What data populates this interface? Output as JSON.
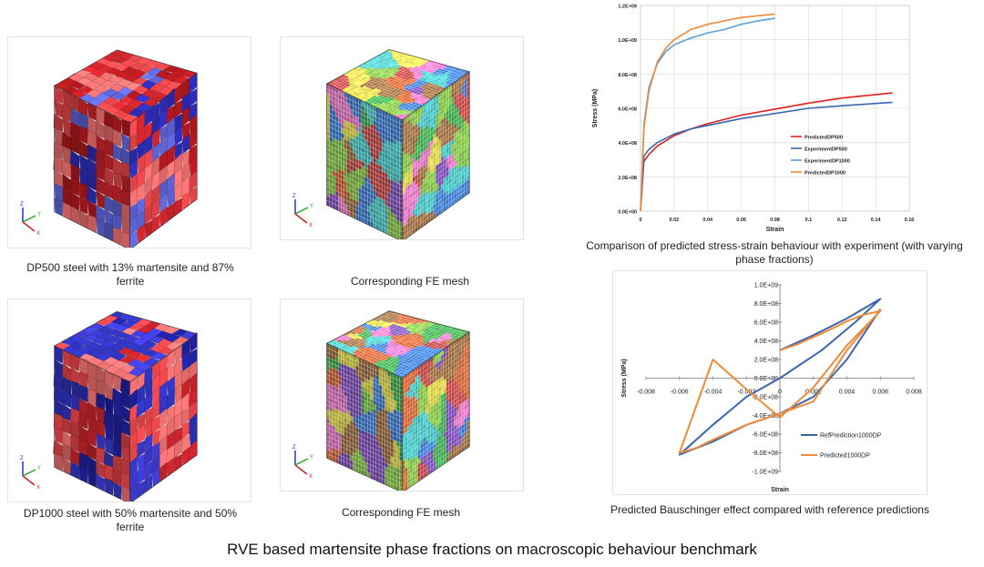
{
  "figures": [
    {
      "caption": "DP500 steel with 13% martensite and 87% ferrite",
      "palette": [
        "#c9242a",
        "#e8454a",
        "#2b2bb8",
        "#f07070",
        "#b3191f",
        "#5b63d6"
      ]
    },
    {
      "caption": "Corresponding FE mesh",
      "palette": [
        "#3aa84a",
        "#c04040",
        "#7a4ab8",
        "#d8d040",
        "#3a7ad0",
        "#e070c0",
        "#40c0c0",
        "#9a6a3a",
        "#80c040",
        "#d06030"
      ]
    },
    {
      "caption": "DP1000 steel with 50% martensite and 50% ferrite",
      "palette": [
        "#c9242a",
        "#1f22a8",
        "#e8454a",
        "#2e34c0",
        "#f07070",
        "#3a3ad0"
      ]
    },
    {
      "caption": "Corresponding FE mesh",
      "palette": [
        "#3aa84a",
        "#c04040",
        "#7a4ab8",
        "#d8d040",
        "#3a7ad0",
        "#e070c0",
        "#40c0c0",
        "#9a6a3a",
        "#80c040",
        "#d06030"
      ]
    }
  ],
  "axis_glyphs": {
    "x": "X",
    "y": "Y",
    "z": "Z"
  },
  "chart_data": [
    {
      "type": "line",
      "caption": "Comparison of predicted stress-strain behaviour with experiment (with varying phase fractions)",
      "title": "",
      "xlabel": "Strain",
      "ylabel": "Stress (MPa)",
      "xlim": [
        0,
        0.16
      ],
      "ylim": [
        0,
        1200000000.0
      ],
      "xticks": [
        "0",
        "0.02",
        "0.04",
        "0.06",
        "0.08",
        "0.1",
        "0.12",
        "0.14",
        "0.16"
      ],
      "yticks": [
        "0.0E+00",
        "2.0E+08",
        "4.0E+08",
        "6.0E+08",
        "8.0E+08",
        "1.0E+09",
        "1.2E+09"
      ],
      "grid": true,
      "legend_position": "right",
      "series": [
        {
          "name": "PredictedDP500",
          "color": "#e02020",
          "x": [
            0,
            0.002,
            0.005,
            0.01,
            0.02,
            0.03,
            0.04,
            0.06,
            0.08,
            0.1,
            0.12,
            0.15
          ],
          "y": [
            0,
            290000000.0,
            330000000.0,
            380000000.0,
            440000000.0,
            480000000.0,
            510000000.0,
            560000000.0,
            595000000.0,
            630000000.0,
            660000000.0,
            690000000.0
          ]
        },
        {
          "name": "ExperimentDP500",
          "color": "#3a66b0",
          "x": [
            0,
            0.002,
            0.005,
            0.01,
            0.02,
            0.03,
            0.04,
            0.06,
            0.08,
            0.1,
            0.12,
            0.15
          ],
          "y": [
            0,
            320000000.0,
            360000000.0,
            400000000.0,
            450000000.0,
            480000000.0,
            500000000.0,
            540000000.0,
            570000000.0,
            600000000.0,
            615000000.0,
            635000000.0
          ]
        },
        {
          "name": "ExperimentDP1000",
          "color": "#5da0d8",
          "x": [
            0,
            0.002,
            0.005,
            0.01,
            0.015,
            0.02,
            0.03,
            0.04,
            0.05,
            0.06,
            0.07,
            0.08
          ],
          "y": [
            0,
            500000000.0,
            720000000.0,
            860000000.0,
            930000000.0,
            970000000.0,
            1010000000.0,
            1040000000.0,
            1060000000.0,
            1090000000.0,
            1110000000.0,
            1125000000.0
          ]
        },
        {
          "name": "PredictedDP1000",
          "color": "#ee8a3a",
          "x": [
            0,
            0.002,
            0.005,
            0.01,
            0.015,
            0.02,
            0.03,
            0.04,
            0.05,
            0.06,
            0.07,
            0.08
          ],
          "y": [
            0,
            480000000.0,
            700000000.0,
            870000000.0,
            950000000.0,
            1000000000.0,
            1060000000.0,
            1090000000.0,
            1110000000.0,
            1130000000.0,
            1140000000.0,
            1150000000.0
          ]
        }
      ]
    },
    {
      "type": "line",
      "caption": "Predicted Bauschinger effect compared with reference predictions",
      "title": "",
      "xlabel": "Strain",
      "ylabel": "Stress (MPa)",
      "xlim": [
        -0.008,
        0.008
      ],
      "ylim": [
        -1000000000.0,
        1000000000.0
      ],
      "xticks": [
        "-0.008",
        "-0.006",
        "-0.004",
        "-0.002",
        "0",
        "0.002",
        "0.004",
        "0.006",
        "0.008"
      ],
      "yticks": [
        "-1.0E+09",
        "-8.0E+08",
        "-6.0E+08",
        "-4.0E+08",
        "-2.0E+08",
        "0.0E+00",
        "2.0E+08",
        "4.0E+08",
        "6.0E+08",
        "8.0E+08",
        "1.0E+09"
      ],
      "grid": false,
      "legend_position": "bottom-right",
      "series": [
        {
          "name": "RefPrediction1000DP",
          "color": "#3a66b0",
          "x": [
            0,
            0.002,
            0.004,
            0.006,
            0.0045,
            0.0025,
            0.0,
            -0.002,
            -0.004,
            -0.006,
            -0.004,
            -0.002,
            0,
            0.002,
            0.004,
            0.006
          ],
          "y": [
            300000000.0,
            460000000.0,
            640000000.0,
            850000000.0,
            600000000.0,
            300000000.0,
            0,
            -200000000.0,
            -500000000.0,
            -820000000.0,
            -680000000.0,
            -500000000.0,
            -380000000.0,
            -200000000.0,
            200000000.0,
            740000000.0
          ]
        },
        {
          "name": "Predicted1000DP",
          "color": "#ee8a3a",
          "x": [
            0,
            0.0005,
            0.001,
            0.0015,
            0.002,
            0.003,
            0.004,
            0.005,
            0.006,
            0.004,
            0.002,
            0,
            -0.002,
            -0.004,
            -0.006,
            -0.005,
            -0.004,
            -0.002,
            0,
            0.002,
            0.004,
            0.006
          ],
          "y": [
            300000000.0,
            330000000.0,
            360000000.0,
            400000000.0,
            440000000.0,
            520000000.0,
            610000000.0,
            680000000.0,
            720000000.0,
            350000000.0,
            -100000000.0,
            -420000000.0,
            -120000000.0,
            200000000.0,
            -800000000.0,
            -750000000.0,
            -660000000.0,
            -500000000.0,
            -380000000.0,
            -250000000.0,
            300000000.0,
            730000000.0
          ]
        }
      ]
    }
  ],
  "footer": "RVE based martensite phase fractions on macroscopic behaviour benchmark"
}
